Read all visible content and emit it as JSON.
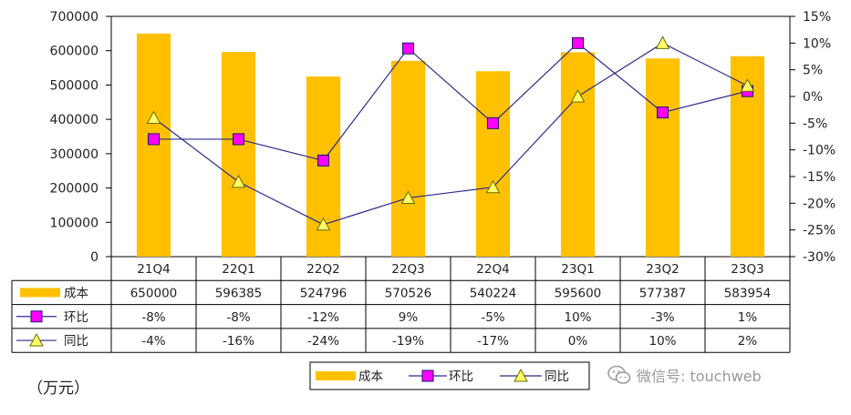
{
  "chart_data": {
    "type": "bar",
    "categories": [
      "21Q4",
      "22Q1",
      "22Q2",
      "22Q3",
      "22Q4",
      "23Q1",
      "23Q2",
      "23Q3"
    ],
    "series": [
      {
        "name": "成本",
        "kind": "bar",
        "axis": "left",
        "color": "#FFC000",
        "values": [
          650000,
          596385,
          524796,
          570526,
          540224,
          595600,
          577387,
          583954
        ],
        "labels": [
          "650000",
          "596385",
          "524796",
          "570526",
          "540224",
          "595600",
          "577387",
          "583954"
        ]
      },
      {
        "name": "环比",
        "kind": "line",
        "axis": "right",
        "color": "#FF00FF",
        "values": [
          -8,
          -8,
          -12,
          9,
          -5,
          10,
          -3,
          1
        ],
        "labels": [
          "-8%",
          "-8%",
          "-12%",
          "9%",
          "-5%",
          "10%",
          "-3%",
          "1%"
        ]
      },
      {
        "name": "同比",
        "kind": "line",
        "axis": "right",
        "color": "#FFFF66",
        "values": [
          -4,
          -16,
          -24,
          -19,
          -17,
          0,
          10,
          2
        ],
        "labels": [
          "-4%",
          "-16%",
          "-24%",
          "-19%",
          "-17%",
          "0%",
          "10%",
          "2%"
        ]
      }
    ],
    "y_left": {
      "min": 0,
      "max": 700000,
      "ticks": [
        "0",
        "100000",
        "200000",
        "300000",
        "400000",
        "500000",
        "600000",
        "700000"
      ]
    },
    "y_right": {
      "min": -30,
      "max": 15,
      "ticks": [
        "-30%",
        "-25%",
        "-20%",
        "-15%",
        "-10%",
        "-5%",
        "0%",
        "5%",
        "10%",
        "15%"
      ]
    },
    "unit_label": "（万元）",
    "legend": {
      "position": "bottom",
      "items": [
        "成本",
        "环比",
        "同比"
      ]
    },
    "grid": false
  },
  "watermark": "微信号: touchweb"
}
